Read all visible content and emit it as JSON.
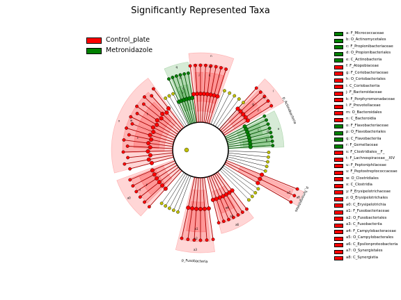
{
  "title": "Significantly Represented Taxa",
  "groups": [
    {
      "name": "Control_plate",
      "color": "#ff0000"
    },
    {
      "name": "Metronidazole",
      "color": "#008000"
    }
  ],
  "clade_legend": [
    {
      "label": "a: F_Micrococcaceae",
      "group": "Metronidazole"
    },
    {
      "label": "b: O_Actinomycetales",
      "group": "Metronidazole"
    },
    {
      "label": "c: F_Propionibacteriaceae",
      "group": "Metronidazole"
    },
    {
      "label": "d: O_Propionibacteriales",
      "group": "Metronidazole"
    },
    {
      "label": "e: C_Actinobacteria",
      "group": "Metronidazole"
    },
    {
      "label": "f: F_Atopobiaceae",
      "group": "Control_plate"
    },
    {
      "label": "g: F_Coriobacteriaceae",
      "group": "Control_plate"
    },
    {
      "label": "h: O_Coriobacteriales",
      "group": "Control_plate"
    },
    {
      "label": "i: C_Coriobacteriia",
      "group": "Control_plate"
    },
    {
      "label": "j: F_Bacteroidaceae",
      "group": "Control_plate"
    },
    {
      "label": "k: F_Porphyromonadaceae",
      "group": "Control_plate"
    },
    {
      "label": "l: F_Prevotellaceae",
      "group": "Control_plate"
    },
    {
      "label": "m: O_Bacteroidales",
      "group": "Control_plate"
    },
    {
      "label": "n: C_Bacteroidia",
      "group": "Control_plate"
    },
    {
      "label": "o: F_Flavobacteriaceae",
      "group": "Metronidazole"
    },
    {
      "label": "p: O_Flavobacteriales",
      "group": "Metronidazole"
    },
    {
      "label": "q: C_Flavobacteriia",
      "group": "Metronidazole"
    },
    {
      "label": "r: F_Gemellaceae",
      "group": "Metronidazole"
    },
    {
      "label": "s: F_Clostridiales__F_",
      "group": "Control_plate"
    },
    {
      "label": "t: F_Lachnospiraceae__XIV",
      "group": "Control_plate"
    },
    {
      "label": "u: F_Peptoniphilaceae",
      "group": "Control_plate"
    },
    {
      "label": "v: F_Peptostreptococcaceae",
      "group": "Control_plate"
    },
    {
      "label": "w: O_Clostridiales",
      "group": "Control_plate"
    },
    {
      "label": "x: C_Clostridia",
      "group": "Control_plate"
    },
    {
      "label": "y: F_Erysipelotrichaceae",
      "group": "Control_plate"
    },
    {
      "label": "z: O_Erysipelotrichales",
      "group": "Control_plate"
    },
    {
      "label": "a0: C_Erysipelotrichia",
      "group": "Control_plate"
    },
    {
      "label": "a1: F_Fusobacteriaceae",
      "group": "Control_plate"
    },
    {
      "label": "a2: O_Fusobacteriales",
      "group": "Control_plate"
    },
    {
      "label": "a3: C_Fusobacteriia",
      "group": "Control_plate"
    },
    {
      "label": "a4: F_Campylobacteraceae",
      "group": "Control_plate"
    },
    {
      "label": "a5: O_Campylobacterales",
      "group": "Control_plate"
    },
    {
      "label": "a6: C_Epsilonproteobacteria",
      "group": "Control_plate"
    },
    {
      "label": "a7: O_Synergistales",
      "group": "Control_plate"
    },
    {
      "label": "a8: C_Synergistia",
      "group": "Control_plate"
    }
  ],
  "phylum_labels": [
    "p_Actinobacteria",
    "p_Synergistetes",
    "p_Fusobacteria"
  ],
  "colors": {
    "enriched_control": "#ff0000",
    "enriched_metronidazole": "#008000",
    "non_significant_node": "#c0c000",
    "edge": "#000000"
  }
}
